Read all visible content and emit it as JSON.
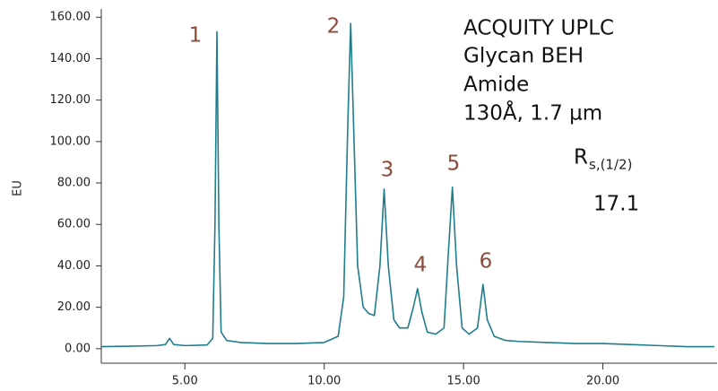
{
  "chart_data": {
    "type": "line",
    "y_label": "EU",
    "x": [
      2.0,
      3.0,
      4.0,
      4.3,
      4.45,
      4.6,
      5.0,
      5.8,
      6.0,
      6.08,
      6.15,
      6.22,
      6.3,
      6.5,
      7.0,
      8.0,
      9.0,
      10.0,
      10.5,
      10.7,
      10.85,
      10.95,
      11.05,
      11.2,
      11.4,
      11.6,
      11.8,
      12.0,
      12.15,
      12.3,
      12.5,
      12.7,
      13.0,
      13.2,
      13.35,
      13.5,
      13.7,
      14.0,
      14.3,
      14.45,
      14.6,
      14.75,
      14.95,
      15.2,
      15.5,
      15.7,
      15.85,
      16.1,
      16.5,
      17.0,
      18.0,
      19.0,
      20.0,
      21.0,
      22.0,
      23.0,
      24.0
    ],
    "series": [
      {
        "color": "#1f7d8c",
        "values": [
          1.0,
          1.2,
          1.5,
          2,
          5,
          2,
          1.5,
          1.8,
          5,
          60,
          153,
          60,
          8,
          4,
          3,
          2.5,
          2.5,
          3,
          6,
          25,
          110,
          157,
          110,
          40,
          20,
          17,
          16,
          40,
          77,
          40,
          14,
          10,
          10,
          20,
          29,
          18,
          8,
          7,
          10,
          45,
          78,
          40,
          10,
          7,
          10,
          31,
          14,
          6,
          4,
          3.5,
          3,
          2.5,
          2.5,
          2,
          1.5,
          1,
          1
        ]
      }
    ],
    "xlim": [
      2,
      24.1
    ],
    "ylim": [
      -7,
      164
    ],
    "xticks": [
      {
        "value": 5,
        "label": "5.00"
      },
      {
        "value": 10,
        "label": "10.00"
      },
      {
        "value": 15,
        "label": "15.00"
      },
      {
        "value": 20,
        "label": "20.00"
      }
    ],
    "yticks": [
      {
        "value": 0,
        "label": "0.00"
      },
      {
        "value": 20,
        "label": "20.00"
      },
      {
        "value": 40,
        "label": "40.00"
      },
      {
        "value": 60,
        "label": "60.00"
      },
      {
        "value": 80,
        "label": "80.00"
      },
      {
        "value": 100,
        "label": "100.00"
      },
      {
        "value": 120,
        "label": "120.00"
      },
      {
        "value": 140,
        "label": "140.00"
      },
      {
        "value": 160,
        "label": "160.00"
      }
    ],
    "peak_labels": [
      "1",
      "2",
      "3",
      "4",
      "5",
      "6"
    ],
    "annotations": [
      "ACQUITY UPLC",
      "Glycan BEH",
      "Amide",
      "130Å, 1.7 µm"
    ],
    "resolution": {
      "symbol": "R",
      "subscript": "s,(1/2)",
      "value": 17.1
    }
  }
}
